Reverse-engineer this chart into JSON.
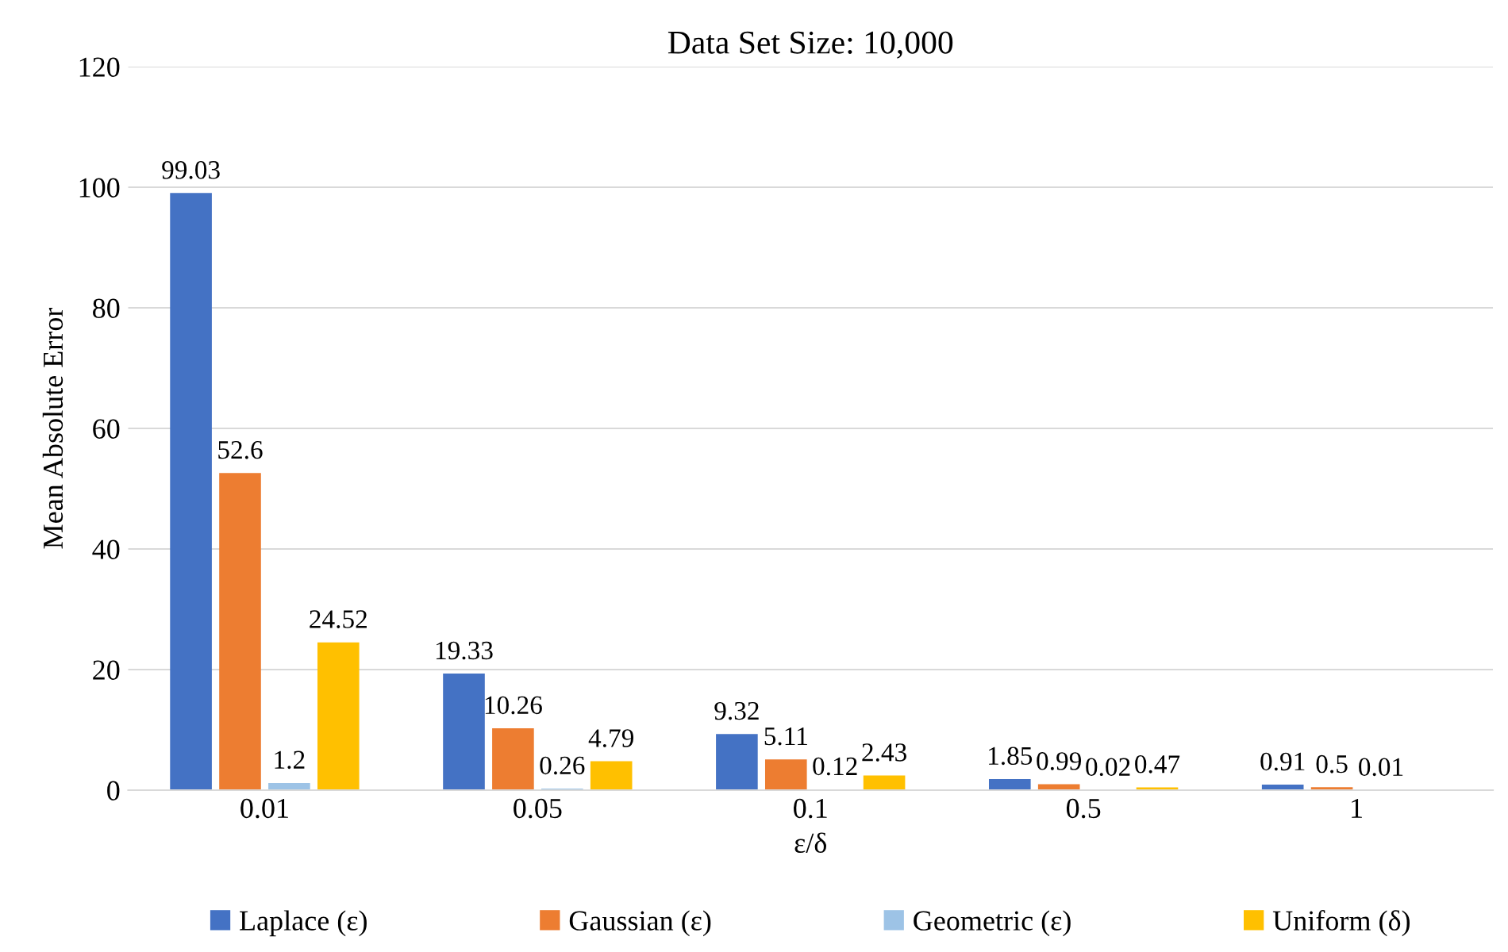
{
  "chart_data": {
    "type": "bar",
    "title": "Data Set Size: 10,000",
    "xlabel": "ε/δ",
    "ylabel": "Mean Absolute Error",
    "categories": [
      "0.01",
      "0.05",
      "0.1",
      "0.5",
      "1"
    ],
    "series": [
      {
        "name": "Laplace (ε)",
        "color": "#4472c4",
        "values": [
          99.03,
          19.33,
          9.32,
          1.85,
          0.91
        ]
      },
      {
        "name": "Gaussian (ε)",
        "color": "#ed7d31",
        "values": [
          52.6,
          10.26,
          5.11,
          0.99,
          0.5
        ]
      },
      {
        "name": "Geometric (ε)",
        "color": "#9dc3e6",
        "values": [
          1.2,
          0.26,
          0.12,
          0.02,
          0.01
        ]
      },
      {
        "name": "Uniform (δ)",
        "color": "#ffc000",
        "values": [
          24.52,
          4.79,
          2.43,
          0.47,
          null
        ]
      }
    ],
    "ylim": [
      0,
      120
    ],
    "yticks": [
      0,
      20,
      40,
      60,
      80,
      100,
      120
    ],
    "grid": "y",
    "legend": "bottom",
    "data_labels": true
  }
}
